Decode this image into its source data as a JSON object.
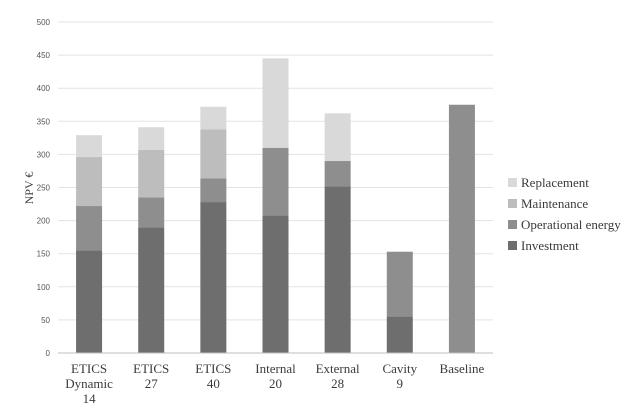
{
  "chart_data": {
    "type": "bar",
    "stacked": true,
    "ylabel": "NPV €",
    "ylim": [
      0,
      500
    ],
    "yticks": [
      0,
      50,
      100,
      150,
      200,
      250,
      300,
      350,
      400,
      450,
      500
    ],
    "grid": true,
    "legend_position": "right",
    "categories": [
      [
        "ETICS",
        "Dynamic",
        "14"
      ],
      [
        "ETICS",
        "27"
      ],
      [
        "ETICS",
        "40"
      ],
      [
        "Internal",
        "20"
      ],
      [
        "External",
        "28"
      ],
      [
        "Cavity",
        "9"
      ],
      [
        "Baseline"
      ]
    ],
    "series": [
      {
        "name": "Investment",
        "color": "#6e6e6e",
        "values": [
          155,
          190,
          228,
          208,
          252,
          55,
          0
        ]
      },
      {
        "name": "Operational energy",
        "color": "#8e8e8e",
        "values": [
          67,
          45,
          36,
          102,
          38,
          98,
          375
        ]
      },
      {
        "name": "Maintenance",
        "color": "#bdbdbd",
        "values": [
          74,
          72,
          74,
          0,
          0,
          0,
          0
        ]
      },
      {
        "name": "Replacement",
        "color": "#d9d9d9",
        "values": [
          33,
          34,
          34,
          135,
          72,
          0,
          0
        ]
      }
    ],
    "legend_order": [
      "Replacement",
      "Maintenance",
      "Operational energy",
      "Investment"
    ]
  }
}
